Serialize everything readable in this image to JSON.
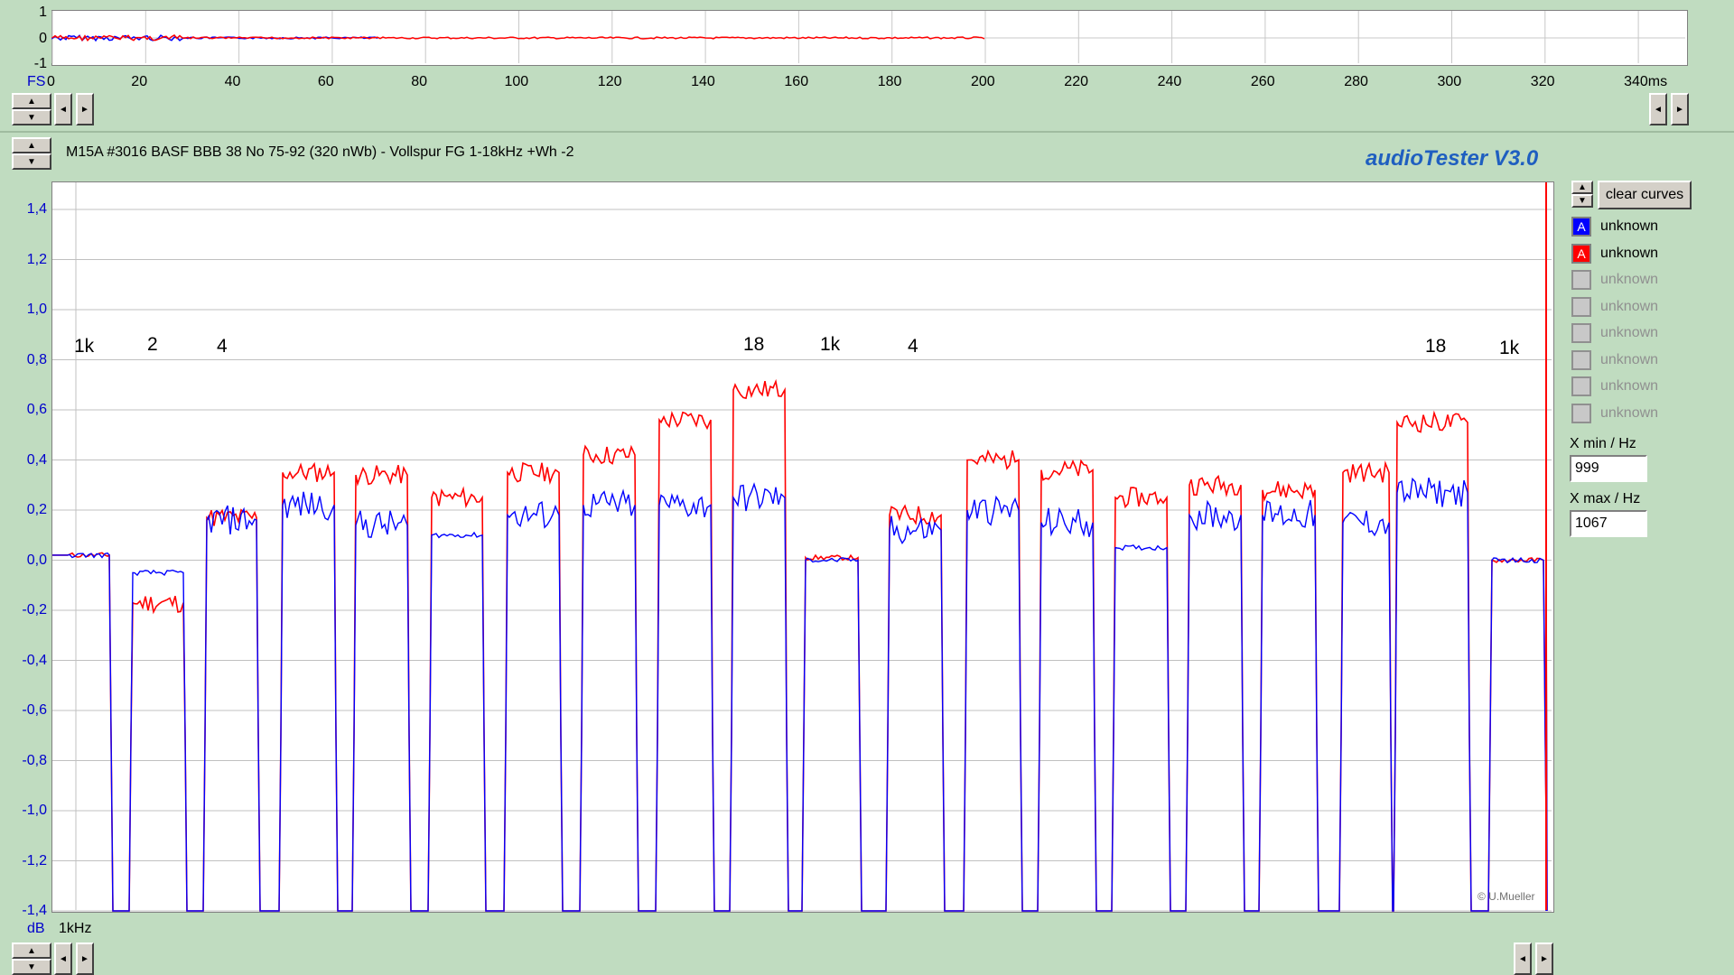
{
  "top_panel": {
    "y_ticks": [
      "1",
      "0",
      "-1"
    ],
    "x_ticks": [
      "0",
      "20",
      "40",
      "60",
      "80",
      "100",
      "120",
      "140",
      "160",
      "180",
      "200",
      "220",
      "240",
      "260",
      "280",
      "300",
      "320",
      "340ms"
    ],
    "corner_label": "FS"
  },
  "main_panel": {
    "title": "M15A #3016 BASF BBB 38 No 75-92 (320 nWb) - Vollspur FG 1-18kHz +Wh -2",
    "brand": "audioTester  V3.0",
    "y_unit": "dB",
    "x_label": "1kHz",
    "copyright": "© U.Mueller",
    "annotations": [
      "1k",
      "2",
      "4",
      "18",
      "1k",
      "4",
      "18",
      "1k"
    ],
    "y_ticks": [
      "1,4",
      "1,2",
      "1,0",
      "0,8",
      "0,6",
      "0,4",
      "0,2",
      "0,0",
      "-0,2",
      "-0,4",
      "-0,6",
      "-0,8",
      "-1,0",
      "-1,2",
      "-1,4"
    ]
  },
  "right_panel": {
    "clear_button": "clear curves",
    "legend": [
      {
        "label": "unknown",
        "state": "on",
        "mark": "A",
        "color": "#0000ff"
      },
      {
        "label": "unknown",
        "state": "on",
        "mark": "A",
        "color": "#ff0000"
      },
      {
        "label": "unknown",
        "state": "off",
        "mark": "",
        "color": "#c8c8c8"
      },
      {
        "label": "unknown",
        "state": "off",
        "mark": "",
        "color": "#c8c8c8"
      },
      {
        "label": "unknown",
        "state": "off",
        "mark": "",
        "color": "#c8c8c8"
      },
      {
        "label": "unknown",
        "state": "off",
        "mark": "",
        "color": "#c8c8c8"
      },
      {
        "label": "unknown",
        "state": "off",
        "mark": "",
        "color": "#c8c8c8"
      },
      {
        "label": "unknown",
        "state": "off",
        "mark": "",
        "color": "#c8c8c8"
      }
    ],
    "xmin_label": "X min / Hz",
    "xmin_value": "999",
    "xmax_label": "X max / Hz",
    "xmax_value": "1067"
  },
  "chart_data": {
    "type": "line",
    "y_range": [
      -1.4,
      1.4
    ],
    "series": [
      {
        "color": "#ff0000",
        "levels": [
          0.02,
          -0.17,
          0.17,
          0.35,
          0.34,
          0.25,
          0.35,
          0.42,
          0.56,
          0.68,
          0.01,
          0.18,
          0.4,
          0.36,
          0.25,
          0.3,
          0.28,
          0.35,
          0.55,
          0.0
        ]
      },
      {
        "color": "#0000ff",
        "levels": [
          0.02,
          -0.05,
          0.16,
          0.22,
          0.14,
          0.1,
          0.18,
          0.22,
          0.22,
          0.25,
          0.0,
          0.12,
          0.2,
          0.15,
          0.05,
          0.18,
          0.18,
          0.15,
          0.27,
          0.0
        ]
      }
    ],
    "accent_colors": {
      "background": "#c0dcc0",
      "brand": "#1f5fc0",
      "axis_labels": "#0000cc"
    }
  }
}
